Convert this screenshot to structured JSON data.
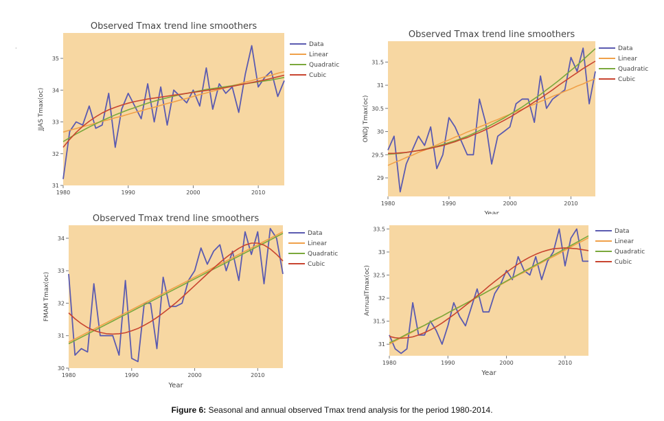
{
  "caption": {
    "label": "Figure 6:",
    "text": "Seasonal and annual observed Tmax trend analysis for the period 1980-2014."
  },
  "colors": {
    "plot_bg": "#f7d7a2",
    "panel_bg": "#ffffff",
    "data": "#5a5ab0",
    "linear": "#f0a048",
    "quadratic": "#7aa83c",
    "cubic": "#c8442f",
    "text": "#444444"
  },
  "chart_data": [
    {
      "id": "jjas",
      "type": "line",
      "title": "Observed Tmax trend line smoothers",
      "xlabel": "",
      "ylabel": "JJAS Tmax(oc)",
      "xlim": [
        1980,
        2014
      ],
      "ylim": [
        31,
        35.8
      ],
      "xticks": [
        1980,
        1990,
        2000,
        2010
      ],
      "yticks": [
        31,
        32,
        33,
        34,
        35
      ],
      "grid": false,
      "legend": "top-right outside",
      "x": [
        1980,
        1981,
        1982,
        1983,
        1984,
        1985,
        1986,
        1987,
        1988,
        1989,
        1990,
        1991,
        1992,
        1993,
        1994,
        1995,
        1996,
        1997,
        1998,
        1999,
        2000,
        2001,
        2002,
        2003,
        2004,
        2005,
        2006,
        2007,
        2008,
        2009,
        2010,
        2011,
        2012,
        2013,
        2014
      ],
      "series": [
        {
          "name": "Data",
          "kind": "data",
          "values": [
            31.2,
            32.7,
            33.0,
            32.9,
            33.5,
            32.8,
            32.9,
            33.9,
            32.2,
            33.4,
            33.9,
            33.5,
            33.1,
            34.2,
            33.0,
            34.1,
            32.9,
            34.0,
            33.8,
            33.6,
            34.0,
            33.5,
            34.7,
            33.4,
            34.2,
            33.9,
            34.1,
            33.3,
            34.5,
            35.4,
            34.1,
            34.4,
            34.6,
            33.8,
            34.3
          ]
        },
        {
          "name": "Linear",
          "kind": "linear",
          "values": [
            32.68,
            32.74,
            32.79,
            32.85,
            32.9,
            32.96,
            33.02,
            33.07,
            33.13,
            33.18,
            33.24,
            33.3,
            33.35,
            33.41,
            33.46,
            33.52,
            33.58,
            33.63,
            33.69,
            33.74,
            33.8,
            33.86,
            33.91,
            33.97,
            34.02,
            34.08,
            34.14,
            34.19,
            34.25,
            34.3,
            34.36,
            34.42,
            34.47,
            34.53,
            34.58
          ]
        },
        {
          "name": "Quadratic",
          "kind": "quadratic",
          "values": [
            32.38,
            32.5,
            32.62,
            32.73,
            32.84,
            32.94,
            33.04,
            33.13,
            33.22,
            33.3,
            33.38,
            33.45,
            33.52,
            33.59,
            33.65,
            33.71,
            33.76,
            33.81,
            33.86,
            33.9,
            33.94,
            33.98,
            34.02,
            34.05,
            34.08,
            34.11,
            34.14,
            34.17,
            34.2,
            34.23,
            34.26,
            34.29,
            34.32,
            34.36,
            34.4
          ]
        },
        {
          "name": "Cubic",
          "kind": "cubic",
          "values": [
            32.2,
            32.45,
            32.67,
            32.86,
            33.02,
            33.16,
            33.28,
            33.38,
            33.46,
            33.53,
            33.59,
            33.64,
            33.68,
            33.72,
            33.75,
            33.78,
            33.81,
            33.84,
            33.87,
            33.9,
            33.93,
            33.96,
            33.99,
            34.02,
            34.05,
            34.08,
            34.12,
            34.16,
            34.2,
            34.24,
            34.28,
            34.32,
            34.37,
            34.42,
            34.47
          ]
        }
      ]
    },
    {
      "id": "ondj",
      "type": "line",
      "title": "Observed Tmax trend line smoothers",
      "xlabel": "Year",
      "ylabel": "ONDJ Tmax(oc)",
      "xlim": [
        1980,
        2014
      ],
      "ylim": [
        28.6,
        31.95
      ],
      "xticks": [
        1980,
        1990,
        2000,
        2010
      ],
      "yticks": [
        29,
        29.5,
        30,
        30.5,
        31,
        31.5
      ],
      "grid": false,
      "legend": "top-right outside",
      "x": [
        1980,
        1981,
        1982,
        1983,
        1984,
        1985,
        1986,
        1987,
        1988,
        1989,
        1990,
        1991,
        1992,
        1993,
        1994,
        1995,
        1996,
        1997,
        1998,
        1999,
        2000,
        2001,
        2002,
        2003,
        2004,
        2005,
        2006,
        2007,
        2008,
        2009,
        2010,
        2011,
        2012,
        2013,
        2014
      ],
      "series": [
        {
          "name": "Data",
          "kind": "data",
          "values": [
            29.6,
            29.9,
            28.7,
            29.3,
            29.6,
            29.9,
            29.7,
            30.1,
            29.2,
            29.5,
            30.3,
            30.1,
            29.8,
            29.5,
            29.5,
            30.7,
            30.2,
            29.3,
            29.9,
            30.0,
            30.1,
            30.6,
            30.7,
            30.7,
            30.2,
            31.2,
            30.5,
            30.7,
            30.8,
            30.9,
            31.6,
            31.3,
            31.8,
            30.6,
            31.3
          ]
        },
        {
          "name": "Linear",
          "kind": "linear",
          "values": [
            29.27,
            29.33,
            29.38,
            29.44,
            29.49,
            29.55,
            29.6,
            29.66,
            29.71,
            29.77,
            29.82,
            29.88,
            29.93,
            29.99,
            30.04,
            30.1,
            30.15,
            30.21,
            30.26,
            30.32,
            30.37,
            30.43,
            30.48,
            30.54,
            30.59,
            30.65,
            30.7,
            30.76,
            30.81,
            30.87,
            30.92,
            30.98,
            31.03,
            31.09,
            31.14
          ]
        },
        {
          "name": "Quadratic",
          "kind": "quadratic",
          "values": [
            29.51,
            29.52,
            29.53,
            29.55,
            29.57,
            29.59,
            29.62,
            29.65,
            29.68,
            29.72,
            29.76,
            29.8,
            29.85,
            29.9,
            29.96,
            30.02,
            30.08,
            30.15,
            30.22,
            30.29,
            30.37,
            30.45,
            30.53,
            30.62,
            30.71,
            30.8,
            30.9,
            31.0,
            31.1,
            31.21,
            31.32,
            31.43,
            31.55,
            31.67,
            31.79
          ]
        },
        {
          "name": "Cubic",
          "kind": "cubic",
          "values": [
            29.53,
            29.53,
            29.54,
            29.55,
            29.57,
            29.59,
            29.61,
            29.64,
            29.67,
            29.7,
            29.74,
            29.78,
            29.83,
            29.87,
            29.93,
            29.98,
            30.04,
            30.1,
            30.17,
            30.24,
            30.31,
            30.39,
            30.47,
            30.55,
            30.64,
            30.72,
            30.81,
            30.9,
            31.0,
            31.09,
            31.18,
            31.27,
            31.36,
            31.44,
            31.52
          ]
        }
      ]
    },
    {
      "id": "fmam",
      "type": "line",
      "title": "Observed Tmax trend line smoothers",
      "xlabel": "Year",
      "ylabel": "FMAM Tmax(oc)",
      "xlim": [
        1980,
        2014
      ],
      "ylim": [
        30,
        34.4
      ],
      "xticks": [
        1980,
        1990,
        2000,
        2010
      ],
      "yticks": [
        30,
        31,
        32,
        33,
        34
      ],
      "grid": false,
      "legend": "top-right outside",
      "x": [
        1980,
        1981,
        1982,
        1983,
        1984,
        1985,
        1986,
        1987,
        1988,
        1989,
        1990,
        1991,
        1992,
        1993,
        1994,
        1995,
        1996,
        1997,
        1998,
        1999,
        2000,
        2001,
        2002,
        2003,
        2004,
        2005,
        2006,
        2007,
        2008,
        2009,
        2010,
        2011,
        2012,
        2013,
        2014
      ],
      "series": [
        {
          "name": "Data",
          "kind": "data",
          "values": [
            32.9,
            30.4,
            30.6,
            30.5,
            32.6,
            31.0,
            31.0,
            31.0,
            30.4,
            32.7,
            30.3,
            30.2,
            32.0,
            32.0,
            30.6,
            32.8,
            31.9,
            31.9,
            32.0,
            32.7,
            33.0,
            33.7,
            33.2,
            33.6,
            33.8,
            33.0,
            33.6,
            32.7,
            34.2,
            33.5,
            34.2,
            32.6,
            34.3,
            34.0,
            32.9
          ]
        },
        {
          "name": "Linear",
          "kind": "linear",
          "values": [
            30.8,
            30.9,
            31.0,
            31.1,
            31.2,
            31.3,
            31.4,
            31.5,
            31.6,
            31.7,
            31.8,
            31.9,
            32.0,
            32.1,
            32.2,
            32.3,
            32.4,
            32.5,
            32.6,
            32.7,
            32.8,
            32.9,
            33.0,
            33.1,
            33.2,
            33.3,
            33.4,
            33.5,
            33.6,
            33.7,
            33.8,
            33.9,
            34.0,
            34.1,
            34.2
          ]
        },
        {
          "name": "Quadratic",
          "kind": "quadratic",
          "values": [
            30.75,
            30.85,
            30.95,
            31.05,
            31.15,
            31.25,
            31.35,
            31.45,
            31.55,
            31.65,
            31.75,
            31.85,
            31.95,
            32.05,
            32.15,
            32.25,
            32.35,
            32.45,
            32.55,
            32.65,
            32.75,
            32.85,
            32.95,
            33.05,
            33.15,
            33.25,
            33.35,
            33.45,
            33.55,
            33.65,
            33.75,
            33.85,
            33.95,
            34.05,
            34.15
          ]
        },
        {
          "name": "Cubic",
          "kind": "cubic",
          "values": [
            31.7,
            31.52,
            31.37,
            31.25,
            31.16,
            31.1,
            31.06,
            31.05,
            31.06,
            31.09,
            31.15,
            31.22,
            31.32,
            31.43,
            31.56,
            31.7,
            31.85,
            32.01,
            32.18,
            32.36,
            32.54,
            32.72,
            32.9,
            33.08,
            33.25,
            33.41,
            33.56,
            33.69,
            33.79,
            33.85,
            33.85,
            33.79,
            33.67,
            33.5,
            33.3
          ]
        }
      ]
    },
    {
      "id": "annual",
      "type": "line",
      "title": "",
      "xlabel": "Year",
      "ylabel": "AnnualTmax(oc)",
      "xlim": [
        1980,
        2014
      ],
      "ylim": [
        30.75,
        33.58
      ],
      "xticks": [
        1980,
        1990,
        2000,
        2010
      ],
      "yticks": [
        31,
        31.5,
        32,
        32.5,
        33,
        33.5
      ],
      "grid": false,
      "legend": "top-right outside",
      "x": [
        1980,
        1981,
        1982,
        1983,
        1984,
        1985,
        1986,
        1987,
        1988,
        1989,
        1990,
        1991,
        1992,
        1993,
        1994,
        1995,
        1996,
        1997,
        1998,
        1999,
        2000,
        2001,
        2002,
        2003,
        2004,
        2005,
        2006,
        2007,
        2008,
        2009,
        2010,
        2011,
        2012,
        2013,
        2014
      ],
      "series": [
        {
          "name": "Data",
          "kind": "data",
          "values": [
            31.2,
            30.9,
            30.8,
            30.9,
            31.9,
            31.2,
            31.2,
            31.5,
            31.3,
            31.0,
            31.4,
            31.9,
            31.6,
            31.4,
            31.8,
            32.2,
            31.7,
            31.7,
            32.1,
            32.3,
            32.6,
            32.4,
            32.9,
            32.6,
            32.5,
            32.9,
            32.4,
            32.8,
            33.0,
            33.5,
            32.7,
            33.3,
            33.5,
            32.8,
            32.8
          ]
        },
        {
          "name": "Linear",
          "kind": "linear",
          "values": [
            31.0,
            31.07,
            31.14,
            31.2,
            31.27,
            31.34,
            31.41,
            31.48,
            31.54,
            31.61,
            31.68,
            31.75,
            31.82,
            31.88,
            31.95,
            32.02,
            32.09,
            32.16,
            32.22,
            32.29,
            32.36,
            32.43,
            32.5,
            32.56,
            32.63,
            32.7,
            32.77,
            32.84,
            32.9,
            32.97,
            33.04,
            33.11,
            33.18,
            33.24,
            33.31
          ]
        },
        {
          "name": "Quadratic",
          "kind": "quadratic",
          "values": [
            31.03,
            31.09,
            31.15,
            31.22,
            31.28,
            31.35,
            31.41,
            31.48,
            31.55,
            31.61,
            31.68,
            31.75,
            31.81,
            31.88,
            31.95,
            32.02,
            32.09,
            32.16,
            32.23,
            32.3,
            32.37,
            32.44,
            32.51,
            32.58,
            32.65,
            32.72,
            32.79,
            32.86,
            32.93,
            33.0,
            33.07,
            33.14,
            33.21,
            33.28,
            33.35
          ]
        },
        {
          "name": "Cubic",
          "kind": "cubic",
          "values": [
            31.17,
            31.14,
            31.13,
            31.14,
            31.16,
            31.2,
            31.25,
            31.31,
            31.38,
            31.46,
            31.55,
            31.64,
            31.74,
            31.84,
            31.94,
            32.05,
            32.15,
            32.26,
            32.36,
            32.46,
            32.56,
            32.65,
            32.74,
            32.82,
            32.89,
            32.95,
            33.0,
            33.04,
            33.07,
            33.08,
            33.09,
            33.08,
            33.07,
            33.05,
            33.03
          ]
        }
      ]
    }
  ]
}
